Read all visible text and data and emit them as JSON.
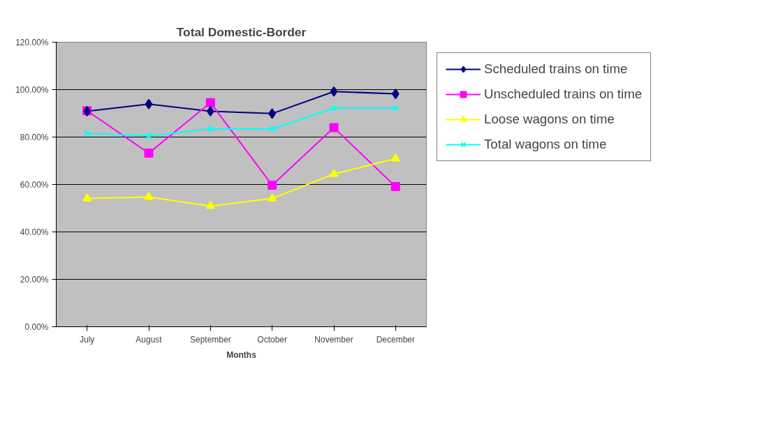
{
  "chart_data": {
    "type": "line",
    "title": "Total Domestic-Border",
    "xlabel": "Months",
    "categories": [
      "July",
      "August",
      "September",
      "October",
      "November",
      "December"
    ],
    "series": [
      {
        "name": "Scheduled trains on time",
        "color": "#000080",
        "marker": "diamond",
        "values": [
          90.9,
          93.9,
          90.9,
          89.9,
          99.2,
          98.2
        ]
      },
      {
        "name": "Unscheduled trains on time",
        "color": "#ff00ff",
        "marker": "square",
        "values": [
          91.1,
          73.2,
          94.5,
          59.7,
          84.0,
          59.1
        ]
      },
      {
        "name": "Loose wagons on time",
        "color": "#ffff00",
        "marker": "triangle",
        "values": [
          54.1,
          54.7,
          50.9,
          54.1,
          64.4,
          70.9
        ]
      },
      {
        "name": "Total wagons on time",
        "color": "#00ffff",
        "marker": "cross",
        "values": [
          81.5,
          80.5,
          83.4,
          83.4,
          92.2,
          92.2
        ]
      }
    ],
    "ylim": [
      0,
      120
    ],
    "yticks": [
      {
        "value": 0,
        "label": "0.00%"
      },
      {
        "value": 20,
        "label": "20.00%"
      },
      {
        "value": 40,
        "label": "40.00%"
      },
      {
        "value": 60,
        "label": "60.00%"
      },
      {
        "value": 80,
        "label": "80.00%"
      },
      {
        "value": 100,
        "label": "100.00%"
      },
      {
        "value": 120,
        "label": "120.00%"
      }
    ],
    "grid": "y",
    "legend": "right",
    "line_style": "solid"
  }
}
